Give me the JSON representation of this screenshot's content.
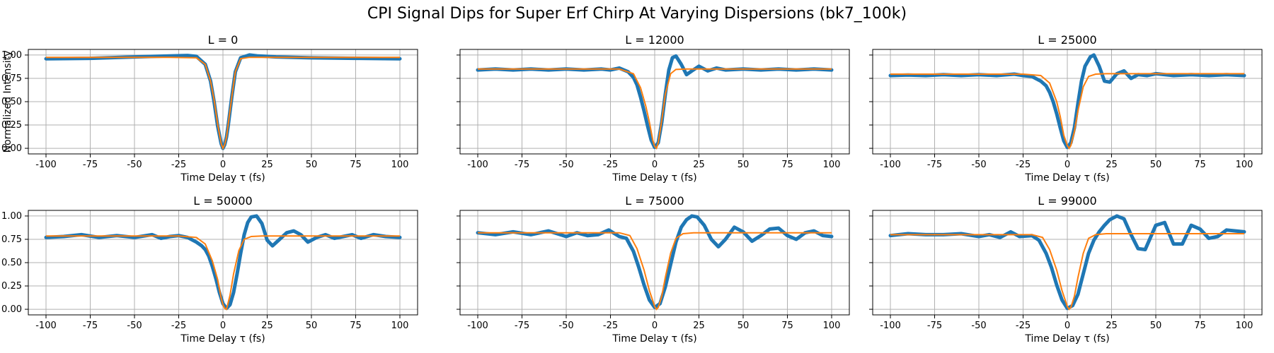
{
  "figure": {
    "title": "CPI Signal Dips for Super Erf Chirp At Varying Dispersions (bk7_100k)"
  },
  "colors": {
    "data": "#1f77b4",
    "fit": "#ff7f0e",
    "grid": "#b0b0b0"
  },
  "chart_data": [
    {
      "type": "line",
      "title": "L = 0",
      "xlabel": "Time Delay τ (fs)",
      "ylabel": "Normalized Intensity",
      "xlim": [
        -110,
        110
      ],
      "ylim": [
        -0.06,
        1.06
      ],
      "xticks": [
        "-100",
        "-75",
        "-50",
        "-25",
        "0",
        "25",
        "50",
        "75",
        "100"
      ],
      "yticks": [
        "0.00",
        "0.25",
        "0.50",
        "0.75",
        "1.00"
      ],
      "grid": true,
      "series": [
        {
          "role": "data",
          "x": [
            -100,
            -75,
            -50,
            -30,
            -20,
            -15,
            -10,
            -7,
            -5,
            -3,
            -1,
            0,
            1,
            2,
            3,
            5,
            7,
            10,
            15,
            20,
            30,
            50,
            75,
            100
          ],
          "y": [
            0.96,
            0.965,
            0.98,
            0.99,
            0.995,
            0.985,
            0.9,
            0.72,
            0.5,
            0.24,
            0.05,
            0.0,
            0.04,
            0.12,
            0.25,
            0.55,
            0.82,
            0.97,
            1.0,
            0.99,
            0.98,
            0.97,
            0.965,
            0.96
          ]
        },
        {
          "role": "fit",
          "x": [
            -100,
            -30,
            -15,
            -10,
            -7,
            -5,
            -3,
            -1,
            0,
            1,
            2,
            3,
            5,
            7,
            10,
            15,
            30,
            100
          ],
          "y": [
            0.975,
            0.975,
            0.97,
            0.9,
            0.72,
            0.52,
            0.26,
            0.05,
            0.0,
            0.04,
            0.12,
            0.26,
            0.55,
            0.82,
            0.96,
            0.975,
            0.975,
            0.975
          ]
        }
      ]
    },
    {
      "type": "line",
      "title": "L = 12000",
      "xlabel": "Time Delay τ (fs)",
      "ylabel": "",
      "xlim": [
        -110,
        110
      ],
      "ylim": [
        -0.06,
        1.06
      ],
      "xticks": [
        "-100",
        "-75",
        "-50",
        "-25",
        "0",
        "25",
        "50",
        "75",
        "100"
      ],
      "yticks": [
        "",
        "",
        "",
        "",
        ""
      ],
      "grid": true,
      "series": [
        {
          "role": "data",
          "x": [
            -100,
            -90,
            -80,
            -70,
            -60,
            -50,
            -40,
            -30,
            -25,
            -20,
            -15,
            -12,
            -10,
            -8,
            -6,
            -4,
            -2,
            0,
            2,
            4,
            6,
            8,
            10,
            12,
            15,
            18,
            21,
            25,
            30,
            35,
            40,
            50,
            60,
            70,
            80,
            90,
            100
          ],
          "y": [
            0.84,
            0.85,
            0.84,
            0.85,
            0.84,
            0.85,
            0.84,
            0.85,
            0.84,
            0.86,
            0.82,
            0.76,
            0.68,
            0.55,
            0.4,
            0.24,
            0.09,
            0.01,
            0.06,
            0.28,
            0.58,
            0.84,
            0.97,
            0.99,
            0.9,
            0.79,
            0.83,
            0.88,
            0.83,
            0.86,
            0.84,
            0.85,
            0.84,
            0.85,
            0.84,
            0.85,
            0.84
          ]
        },
        {
          "role": "fit",
          "x": [
            -100,
            -20,
            -12,
            -8,
            -5,
            -3,
            -1,
            0,
            1,
            2,
            4,
            6,
            9,
            12,
            18,
            100
          ],
          "y": [
            0.85,
            0.85,
            0.8,
            0.65,
            0.45,
            0.28,
            0.08,
            0.02,
            0.0,
            0.06,
            0.3,
            0.58,
            0.8,
            0.845,
            0.85,
            0.85
          ]
        }
      ]
    },
    {
      "type": "line",
      "title": "L = 25000",
      "xlabel": "Time Delay τ (fs)",
      "ylabel": "",
      "xlim": [
        -110,
        110
      ],
      "ylim": [
        -0.06,
        1.06
      ],
      "xticks": [
        "-100",
        "-75",
        "-50",
        "-25",
        "0",
        "25",
        "50",
        "75",
        "100"
      ],
      "yticks": [
        "",
        "",
        "",
        "",
        ""
      ],
      "grid": true,
      "series": [
        {
          "role": "data",
          "x": [
            -100,
            -90,
            -80,
            -70,
            -60,
            -50,
            -40,
            -30,
            -25,
            -20,
            -15,
            -12,
            -10,
            -8,
            -6,
            -4,
            -2,
            0,
            2,
            4,
            6,
            8,
            10,
            13,
            15,
            18,
            21,
            24,
            28,
            32,
            36,
            40,
            45,
            50,
            60,
            70,
            80,
            90,
            100
          ],
          "y": [
            0.78,
            0.785,
            0.78,
            0.79,
            0.78,
            0.79,
            0.78,
            0.795,
            0.78,
            0.77,
            0.72,
            0.67,
            0.6,
            0.5,
            0.37,
            0.22,
            0.08,
            0.01,
            0.06,
            0.22,
            0.48,
            0.72,
            0.88,
            0.98,
            1.0,
            0.88,
            0.72,
            0.71,
            0.8,
            0.83,
            0.75,
            0.79,
            0.78,
            0.8,
            0.78,
            0.79,
            0.78,
            0.79,
            0.78
          ]
        },
        {
          "role": "fit",
          "x": [
            -100,
            -25,
            -15,
            -10,
            -6,
            -4,
            -2,
            0,
            1,
            2,
            4,
            6,
            9,
            12,
            16,
            22,
            100
          ],
          "y": [
            0.795,
            0.795,
            0.78,
            0.7,
            0.5,
            0.34,
            0.14,
            0.03,
            0.0,
            0.03,
            0.18,
            0.4,
            0.66,
            0.77,
            0.795,
            0.8,
            0.8
          ]
        }
      ]
    },
    {
      "type": "line",
      "title": "L = 50000",
      "xlabel": "Time Delay τ (fs)",
      "ylabel": "",
      "xlim": [
        -110,
        110
      ],
      "ylim": [
        -0.06,
        1.06
      ],
      "xticks": [
        "-100",
        "-75",
        "-50",
        "-25",
        "0",
        "25",
        "50",
        "75",
        "100"
      ],
      "yticks": [
        "0.00",
        "0.25",
        "0.50",
        "0.75",
        "1.00"
      ],
      "grid": true,
      "series": [
        {
          "role": "data",
          "x": [
            -100,
            -90,
            -80,
            -70,
            -60,
            -50,
            -40,
            -35,
            -30,
            -25,
            -20,
            -15,
            -12,
            -10,
            -8,
            -6,
            -4,
            -2,
            0,
            2,
            4,
            6,
            8,
            10,
            12,
            14,
            16,
            19,
            22,
            25,
            28,
            32,
            36,
            40,
            44,
            48,
            53,
            58,
            63,
            68,
            73,
            78,
            85,
            92,
            100
          ],
          "y": [
            0.77,
            0.78,
            0.8,
            0.77,
            0.79,
            0.77,
            0.8,
            0.76,
            0.78,
            0.79,
            0.77,
            0.72,
            0.68,
            0.64,
            0.57,
            0.46,
            0.33,
            0.18,
            0.06,
            0.01,
            0.05,
            0.18,
            0.38,
            0.6,
            0.8,
            0.93,
            0.99,
            1.0,
            0.92,
            0.74,
            0.68,
            0.75,
            0.82,
            0.84,
            0.8,
            0.72,
            0.77,
            0.8,
            0.76,
            0.78,
            0.8,
            0.76,
            0.8,
            0.78,
            0.77
          ]
        },
        {
          "role": "fit",
          "x": [
            -100,
            -25,
            -15,
            -10,
            -6,
            -3,
            -1,
            0,
            1,
            2,
            4,
            6,
            9,
            12,
            16,
            22,
            100
          ],
          "y": [
            0.785,
            0.785,
            0.77,
            0.7,
            0.52,
            0.32,
            0.12,
            0.05,
            0.01,
            0.0,
            0.15,
            0.38,
            0.63,
            0.75,
            0.78,
            0.785,
            0.785
          ]
        }
      ]
    },
    {
      "type": "line",
      "title": "L = 75000",
      "xlabel": "Time Delay τ (fs)",
      "ylabel": "",
      "xlim": [
        -110,
        110
      ],
      "ylim": [
        -0.06,
        1.06
      ],
      "xticks": [
        "-100",
        "-75",
        "-50",
        "-25",
        "0",
        "25",
        "50",
        "75",
        "100"
      ],
      "yticks": [
        "",
        "",
        "",
        "",
        ""
      ],
      "grid": true,
      "series": [
        {
          "role": "data",
          "x": [
            -100,
            -90,
            -80,
            -70,
            -60,
            -50,
            -44,
            -38,
            -32,
            -26,
            -20,
            -16,
            -12,
            -9,
            -6,
            -3,
            0,
            3,
            6,
            9,
            12,
            15,
            18,
            21,
            24,
            28,
            32,
            36,
            40,
            45,
            50,
            55,
            60,
            65,
            70,
            75,
            80,
            85,
            90,
            95,
            100
          ],
          "y": [
            0.82,
            0.8,
            0.83,
            0.8,
            0.84,
            0.78,
            0.82,
            0.79,
            0.8,
            0.85,
            0.78,
            0.76,
            0.62,
            0.45,
            0.26,
            0.1,
            0.02,
            0.06,
            0.24,
            0.48,
            0.72,
            0.88,
            0.96,
            1.0,
            0.99,
            0.9,
            0.75,
            0.67,
            0.75,
            0.88,
            0.83,
            0.73,
            0.79,
            0.86,
            0.87,
            0.79,
            0.75,
            0.82,
            0.84,
            0.79,
            0.78
          ]
        },
        {
          "role": "fit",
          "x": [
            -100,
            -20,
            -14,
            -10,
            -6,
            -3,
            0,
            1,
            2,
            4,
            6,
            9,
            12,
            16,
            22,
            100
          ],
          "y": [
            0.82,
            0.82,
            0.79,
            0.65,
            0.42,
            0.2,
            0.03,
            0.0,
            0.02,
            0.14,
            0.34,
            0.6,
            0.76,
            0.81,
            0.82,
            0.82
          ]
        }
      ]
    },
    {
      "type": "line",
      "title": "L = 99000",
      "xlabel": "Time Delay τ (fs)",
      "ylabel": "",
      "xlim": [
        -110,
        110
      ],
      "ylim": [
        -0.06,
        1.06
      ],
      "xticks": [
        "-100",
        "-75",
        "-50",
        "-25",
        "0",
        "25",
        "50",
        "75",
        "100"
      ],
      "yticks": [
        "",
        "",
        "",
        "",
        ""
      ],
      "grid": true,
      "series": [
        {
          "role": "data",
          "x": [
            -100,
            -90,
            -80,
            -70,
            -60,
            -50,
            -44,
            -38,
            -32,
            -27,
            -20,
            -16,
            -12,
            -9,
            -6,
            -3,
            0,
            3,
            6,
            9,
            12,
            15,
            18,
            21,
            24,
            28,
            32,
            36,
            40,
            44,
            50,
            55,
            60,
            65,
            70,
            75,
            80,
            85,
            90,
            95,
            100
          ],
          "y": [
            0.79,
            0.81,
            0.8,
            0.8,
            0.81,
            0.78,
            0.8,
            0.77,
            0.83,
            0.78,
            0.79,
            0.74,
            0.6,
            0.45,
            0.26,
            0.1,
            0.01,
            0.04,
            0.16,
            0.38,
            0.6,
            0.74,
            0.83,
            0.9,
            0.96,
            1.0,
            0.97,
            0.8,
            0.65,
            0.64,
            0.9,
            0.93,
            0.7,
            0.7,
            0.9,
            0.86,
            0.76,
            0.78,
            0.85,
            0.84,
            0.83
          ]
        },
        {
          "role": "fit",
          "x": [
            -100,
            -20,
            -14,
            -10,
            -6,
            -3,
            0,
            1,
            2,
            4,
            6,
            9,
            12,
            16,
            22,
            100
          ],
          "y": [
            0.8,
            0.8,
            0.77,
            0.64,
            0.42,
            0.2,
            0.03,
            0.0,
            0.02,
            0.14,
            0.34,
            0.6,
            0.76,
            0.8,
            0.81,
            0.81
          ]
        }
      ]
    }
  ]
}
